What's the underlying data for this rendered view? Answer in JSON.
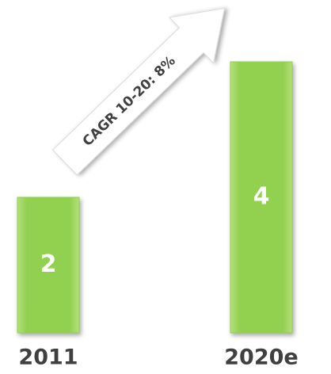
{
  "chart_data": {
    "type": "bar",
    "categories": [
      "2011",
      "2020e"
    ],
    "values": [
      2,
      4
    ],
    "color": "#92d050",
    "annotation": "CAGR 10-20: 8%"
  }
}
